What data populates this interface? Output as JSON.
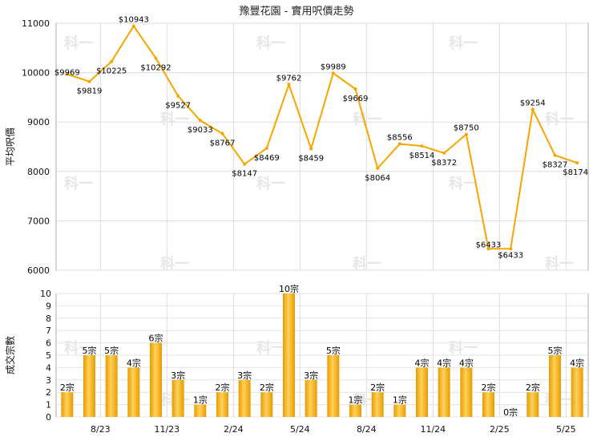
{
  "chart_data": [
    {
      "type": "line",
      "title": "豫豐花園 - 實用呎價走勢",
      "ylabel": "平均呎價",
      "ylim": [
        6000,
        11000
      ],
      "yticks": [
        6000,
        7000,
        8000,
        9000,
        10000,
        11000
      ],
      "color": "#f7a600",
      "values": [
        9969,
        9819,
        10225,
        10943,
        10292,
        9527,
        9033,
        8767,
        8147,
        8469,
        9762,
        8459,
        9989,
        9669,
        8064,
        8556,
        8514,
        8372,
        8750,
        6433,
        6433,
        9254,
        8327,
        8174
      ],
      "labels": [
        "$9969",
        "$9819",
        "$10225",
        "$10943",
        "$10292",
        "$9527",
        "$9033",
        "$8767",
        "$8147",
        "$8469",
        "$9762",
        "$8459",
        "$9989",
        "$9669",
        "$8064",
        "$8556",
        "$8514",
        "$8372",
        "$8750",
        "$6433",
        "$6433",
        "$9254",
        "$8327",
        "$8174"
      ]
    },
    {
      "type": "bar",
      "ylabel": "成交宗數",
      "ylim": [
        0,
        10
      ],
      "yticks": [
        0,
        1,
        2,
        3,
        4,
        5,
        6,
        7,
        8,
        9,
        10
      ],
      "color": "#f5b31c",
      "values": [
        2,
        5,
        5,
        4,
        6,
        3,
        1,
        2,
        3,
        2,
        10,
        3,
        5,
        1,
        2,
        1,
        4,
        4,
        4,
        2,
        0,
        2,
        5,
        4
      ],
      "labels": [
        "2宗",
        "5宗",
        "5宗",
        "4宗",
        "6宗",
        "3宗",
        "1宗",
        "2宗",
        "3宗",
        "2宗",
        "10宗",
        "3宗",
        "5宗",
        "1宗",
        "2宗",
        "1宗",
        "4宗",
        "4宗",
        "4宗",
        "2宗",
        "0宗",
        "2宗",
        "5宗",
        "4宗"
      ],
      "x_tick_labels": [
        "8/23",
        "11/23",
        "2/24",
        "5/24",
        "8/24",
        "11/24",
        "2/25",
        "5/25"
      ],
      "x_tick_after_index": [
        1,
        4,
        7,
        10,
        13,
        16,
        19,
        22
      ]
    }
  ],
  "watermark": "科一"
}
